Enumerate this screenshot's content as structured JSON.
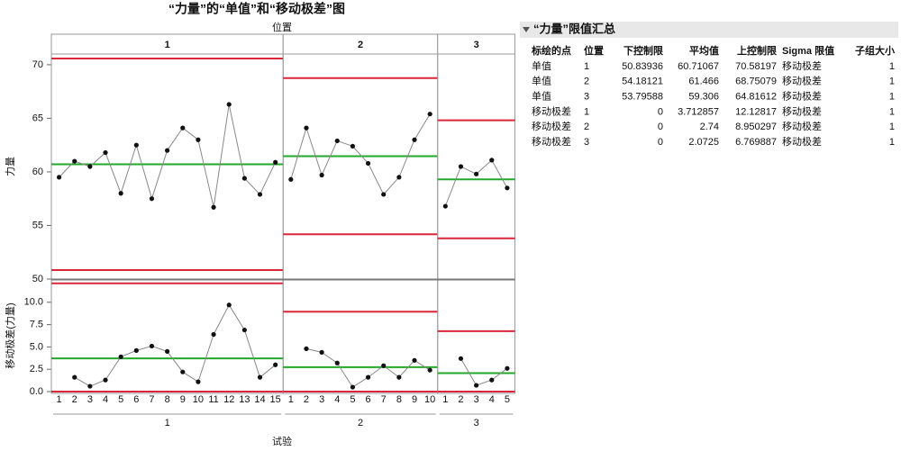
{
  "chart_data": [
    {
      "type": "line",
      "title": "“力量”的“单值”和“移动极差”图",
      "panel_title": "位置",
      "y_label": "力量",
      "ylim": [
        50,
        71
      ],
      "yticks": [
        50,
        55,
        60,
        65,
        70
      ],
      "line_color": "#888888",
      "point_color": "#111111",
      "center_color": "#22a82a",
      "limit_color": "#d9263a",
      "panels": [
        {
          "label": "1",
          "values": [
            59.5,
            61.0,
            60.5,
            61.8,
            58.0,
            62.5,
            57.5,
            62.0,
            64.1,
            63.0,
            56.7,
            66.3,
            59.4,
            57.9,
            60.9
          ]
        },
        {
          "label": "2",
          "values": [
            59.3,
            64.1,
            59.7,
            62.9,
            62.4,
            60.8,
            57.9,
            59.5,
            63.0,
            65.4
          ]
        },
        {
          "label": "3",
          "values": [
            56.8,
            60.5,
            59.8,
            61.1,
            58.5
          ]
        }
      ]
    },
    {
      "type": "line",
      "y_label": "移动极差(力量)",
      "x_label": "试验",
      "ylim": [
        -0.2,
        12.5
      ],
      "yticks": [
        {
          "value": 0,
          "label": "0.0"
        },
        2.5,
        {
          "value": 5,
          "label": "5.0"
        },
        7.5,
        {
          "value": 10,
          "label": "10.0"
        }
      ],
      "line_color": "#888888",
      "point_color": "#111111",
      "center_color": "#22a82a",
      "limit_color": "#d9263a",
      "panels": [
        {
          "label": "1",
          "categories": [
            1,
            2,
            3,
            4,
            5,
            6,
            7,
            8,
            9,
            10,
            11,
            12,
            13,
            14,
            15
          ],
          "values": [
            null,
            1.6,
            0.6,
            1.3,
            3.9,
            4.6,
            5.1,
            4.5,
            2.2,
            1.1,
            6.4,
            9.7,
            6.9,
            1.6,
            3.0
          ]
        },
        {
          "label": "2",
          "categories": [
            1,
            2,
            3,
            4,
            5,
            6,
            7,
            8,
            9,
            10
          ],
          "values": [
            null,
            4.8,
            4.4,
            3.2,
            0.5,
            1.6,
            2.9,
            1.6,
            3.5,
            2.4
          ]
        },
        {
          "label": "3",
          "categories": [
            1,
            2,
            3,
            4,
            5
          ],
          "values": [
            null,
            3.7,
            0.7,
            1.3,
            2.6
          ]
        }
      ]
    }
  ],
  "limits_summary": {
    "title": "“力量”限值汇总",
    "columns": [
      "标绘的点",
      "位置",
      "下控制限",
      "平均值",
      "上控制限",
      "Sigma 限值",
      "子组大小"
    ],
    "rows": [
      [
        "单值",
        1,
        50.83936,
        60.71067,
        70.58197,
        "移动极差",
        1
      ],
      [
        "单值",
        2,
        54.18121,
        61.466,
        68.75079,
        "移动极差",
        1
      ],
      [
        "单值",
        3,
        53.79588,
        59.306,
        64.81612,
        "移动极差",
        1
      ],
      [
        "移动极差",
        1,
        0,
        3.712857,
        12.12817,
        "移动极差",
        1
      ],
      [
        "移动极差",
        2,
        0,
        2.74,
        8.950297,
        "移动极差",
        1
      ],
      [
        "移动极差",
        3,
        0,
        2.0725,
        6.769887,
        "移动极差",
        1
      ]
    ]
  }
}
